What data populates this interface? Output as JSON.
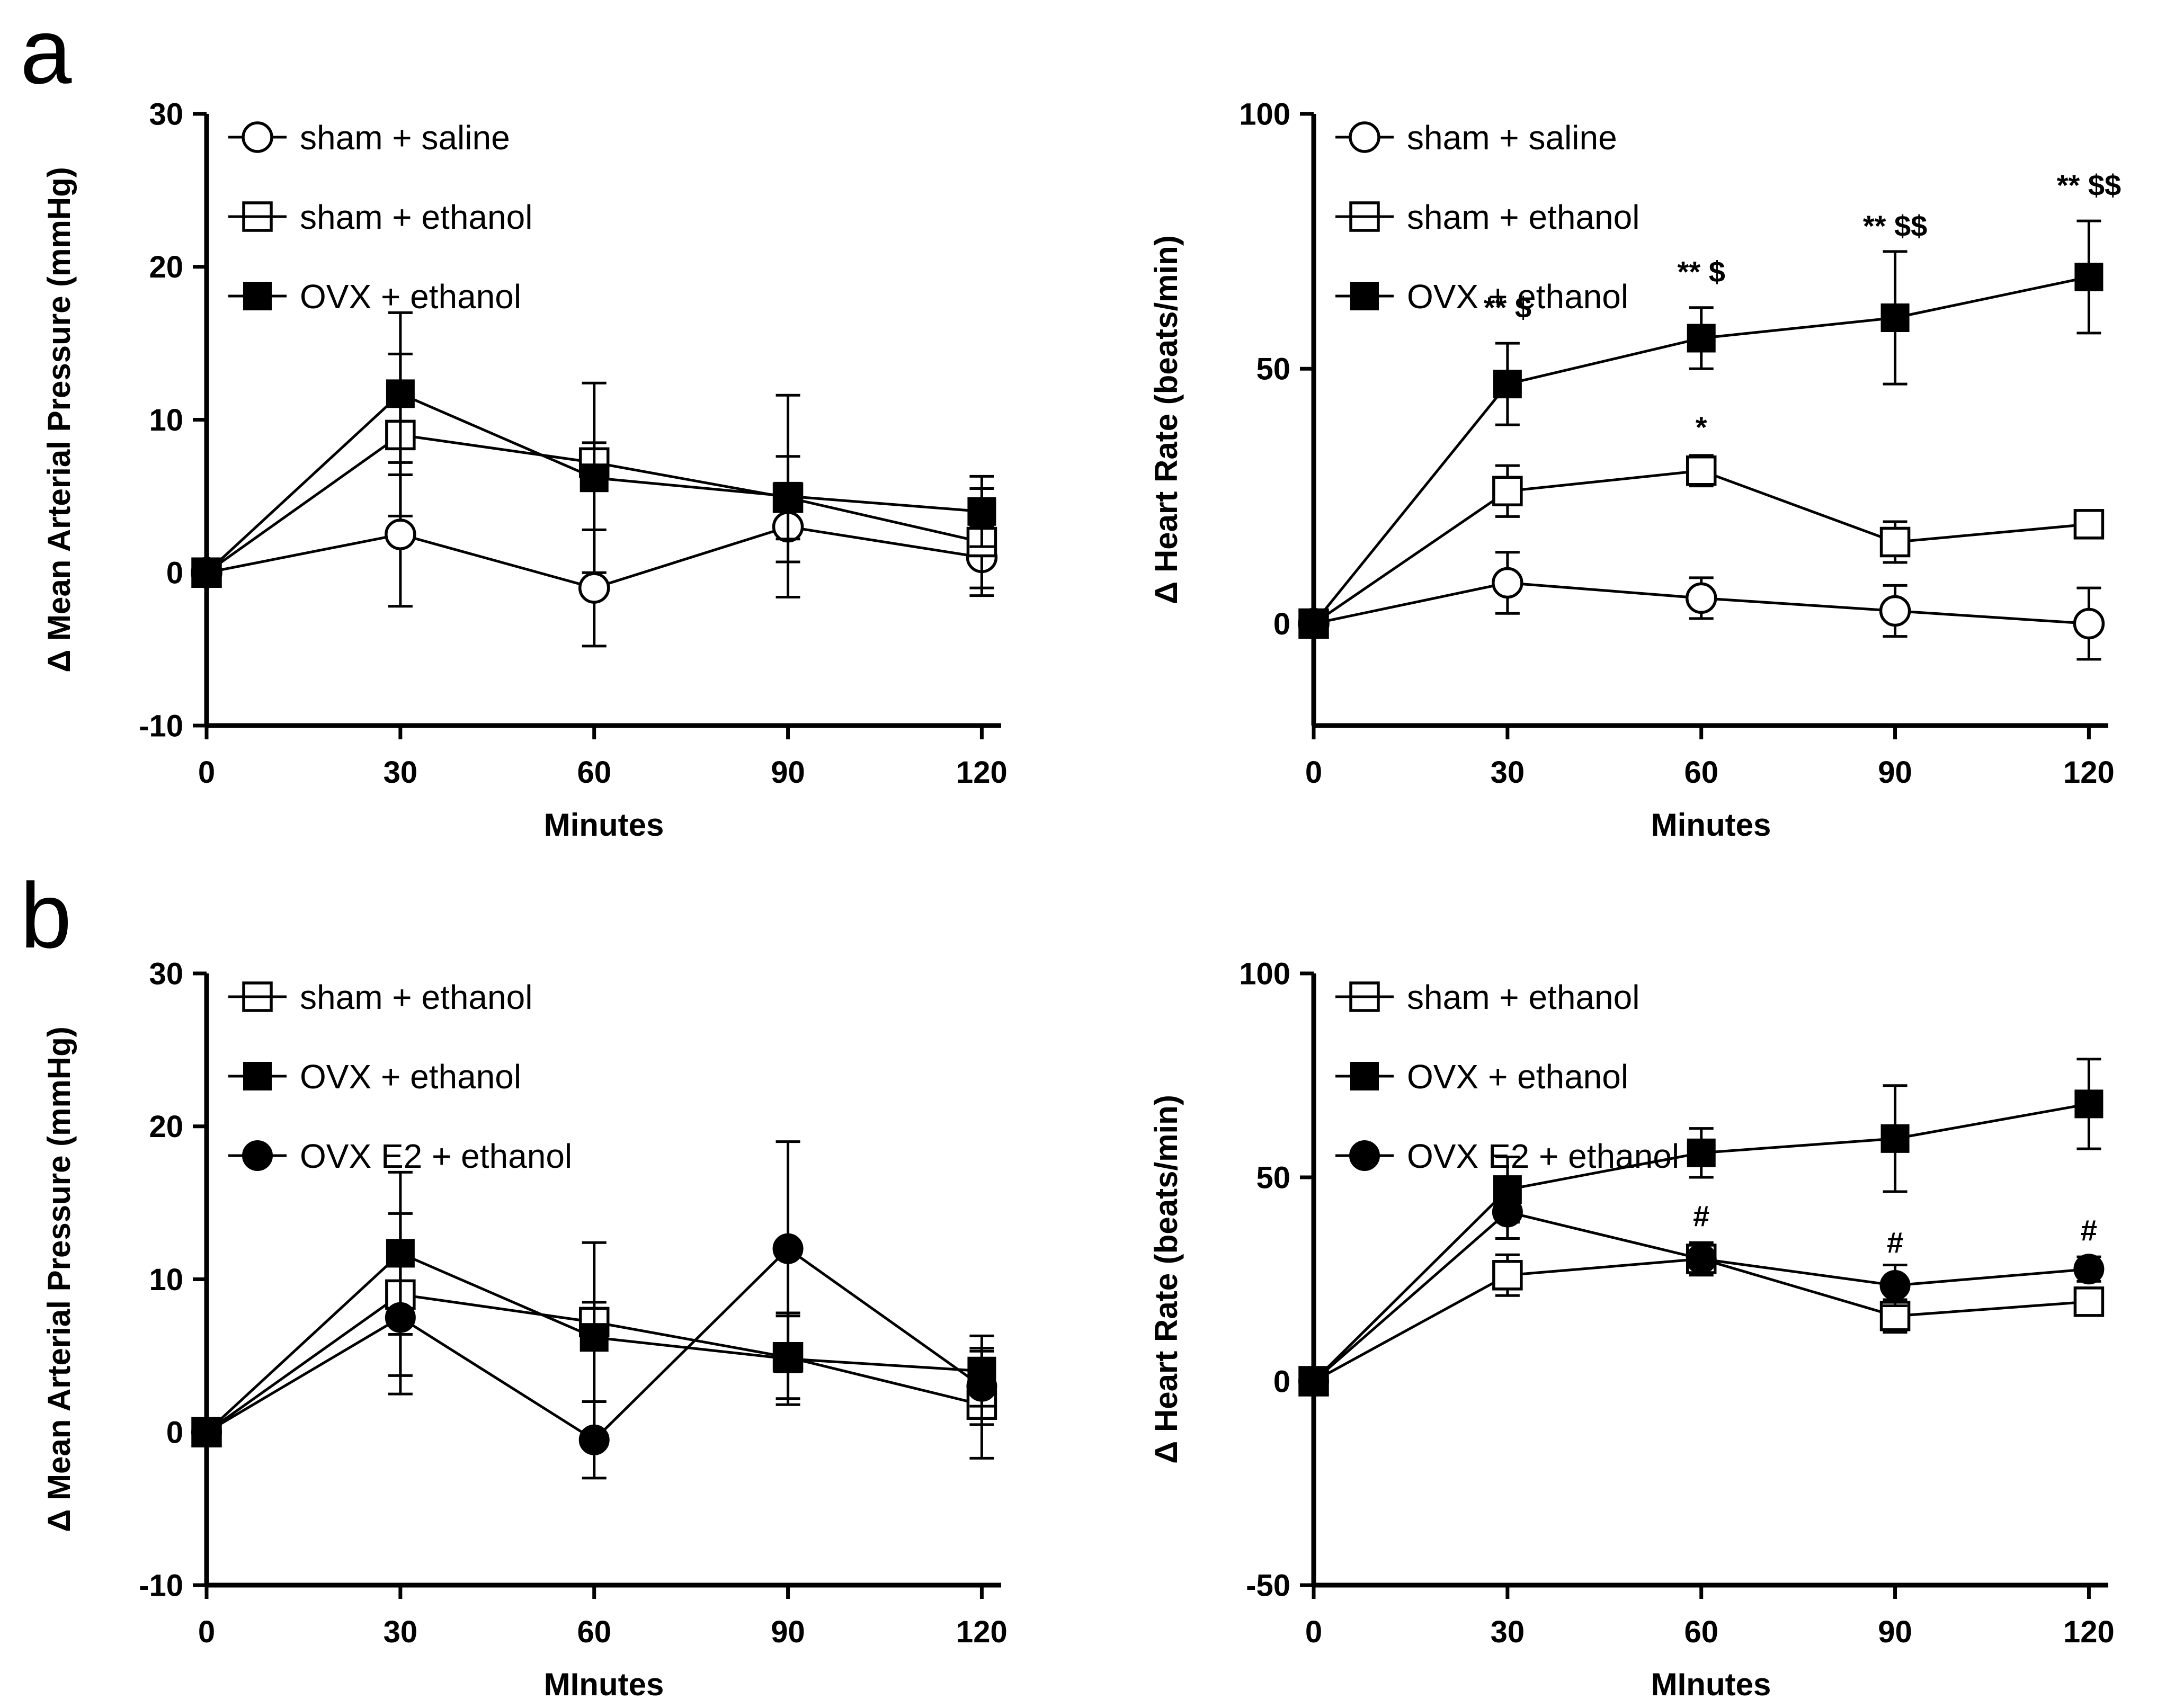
{
  "figure": {
    "description": "Two-panel figure (a, b): time-course line charts of change in mean arterial pressure and heart rate after saline/ethanol in sham, OVX and OVX E2 rats",
    "background": "#ffffff"
  },
  "colors": {
    "ink": "#000000",
    "background": "#ffffff"
  },
  "panels": [
    {
      "label": "a"
    },
    {
      "label": "b"
    }
  ],
  "chart_data": [
    {
      "type": "line",
      "panel": "a",
      "title": "",
      "xlabel": "Minutes",
      "ylabel": "Δ Mean Arterial Pressure (mmHg)",
      "x": [
        0,
        30,
        60,
        90,
        120
      ],
      "xticks": [
        0,
        30,
        60,
        90,
        120
      ],
      "xlim": [
        0,
        123
      ],
      "ylim": [
        -10,
        30
      ],
      "yticks": [
        -10,
        0,
        10,
        20,
        30
      ],
      "grid": false,
      "legend_position": "top-left-inside",
      "series": [
        {
          "name": "sham + saline",
          "marker": "circle-open",
          "values": [
            0,
            2.5,
            -1,
            3,
            1
          ],
          "err": [
            0,
            4.7,
            3.8,
            2.3,
            2.0
          ]
        },
        {
          "name": "sham + ethanol",
          "marker": "square-open",
          "values": [
            0,
            9,
            7.2,
            4.9,
            2
          ],
          "err": [
            0,
            5.3,
            1.3,
            2.7,
            3.5
          ]
        },
        {
          "name": "OVX + ethanol",
          "marker": "square-filled",
          "values": [
            0,
            11.7,
            6.2,
            5,
            4
          ],
          "err": [
            0,
            5.3,
            6.2,
            6.6,
            2.3
          ]
        }
      ],
      "annotations": []
    },
    {
      "type": "line",
      "panel": "a",
      "title": "",
      "xlabel": "Minutes",
      "ylabel": "Δ Heart Rate (beats/min)",
      "x": [
        0,
        30,
        60,
        90,
        120
      ],
      "xticks": [
        0,
        30,
        60,
        90,
        120
      ],
      "xlim": [
        0,
        123
      ],
      "ylim": [
        -20,
        100
      ],
      "yticks": [
        0,
        50,
        100
      ],
      "grid": false,
      "legend_position": "top-left-inside",
      "series": [
        {
          "name": "sham + saline",
          "marker": "circle-open",
          "values": [
            0,
            8,
            5,
            2.5,
            0
          ],
          "err": [
            0,
            6,
            4,
            5,
            7
          ]
        },
        {
          "name": "sham + ethanol",
          "marker": "square-open",
          "values": [
            0,
            26,
            30,
            16,
            19.5
          ],
          "err": [
            0,
            5,
            3,
            4,
            2.5
          ]
        },
        {
          "name": "OVX + ethanol",
          "marker": "square-filled",
          "values": [
            0,
            47,
            56,
            60,
            68
          ],
          "err": [
            0,
            8,
            6,
            13,
            11
          ]
        }
      ],
      "annotations": [
        {
          "x": 30,
          "y": 60,
          "text": "** $"
        },
        {
          "x": 60,
          "y": 67,
          "text": "** $"
        },
        {
          "x": 60,
          "y": 36.5,
          "text": "*"
        },
        {
          "x": 90,
          "y": 76,
          "text": "** $$"
        },
        {
          "x": 120,
          "y": 84,
          "text": "** $$"
        }
      ]
    },
    {
      "type": "line",
      "panel": "b",
      "title": "",
      "xlabel": "MInutes",
      "ylabel": "Δ Mean Arterial Pressure (mmHg)",
      "x": [
        0,
        30,
        60,
        90,
        120
      ],
      "xticks": [
        0,
        30,
        60,
        90,
        120
      ],
      "xlim": [
        0,
        123
      ],
      "ylim": [
        -10,
        30
      ],
      "yticks": [
        -10,
        0,
        10,
        20,
        30
      ],
      "grid": false,
      "legend_position": "top-left-inside",
      "series": [
        {
          "name": "sham + ethanol",
          "marker": "square-open",
          "values": [
            0,
            9,
            7.2,
            4.9,
            1.8
          ],
          "err": [
            0,
            5.3,
            1.3,
            2.7,
            3.5
          ]
        },
        {
          "name": "OVX + ethanol",
          "marker": "square-filled",
          "values": [
            0,
            11.7,
            6.2,
            4.8,
            4
          ],
          "err": [
            0,
            5.3,
            6.2,
            3.0,
            2.3
          ]
        },
        {
          "name": "OVX E2 + ethanol",
          "marker": "circle-filled",
          "values": [
            0,
            7.5,
            -0.5,
            12,
            3
          ],
          "err": [
            0,
            5.0,
            2.5,
            7.0,
            2.5
          ]
        }
      ],
      "annotations": []
    },
    {
      "type": "line",
      "panel": "b",
      "title": "",
      "xlabel": "MInutes",
      "ylabel": "Δ Heart Rate (beats/min)",
      "x": [
        0,
        30,
        60,
        90,
        120
      ],
      "xticks": [
        0,
        30,
        60,
        90,
        120
      ],
      "xlim": [
        0,
        123
      ],
      "ylim": [
        -50,
        100
      ],
      "yticks": [
        -50,
        0,
        50,
        100
      ],
      "grid": false,
      "legend_position": "top-left-inside",
      "series": [
        {
          "name": "sham + ethanol",
          "marker": "square-open",
          "values": [
            0,
            26,
            30,
            16,
            19.5
          ],
          "err": [
            0,
            5,
            3,
            4,
            2.5
          ]
        },
        {
          "name": "OVX + ethanol",
          "marker": "square-filled",
          "values": [
            0,
            47,
            56,
            59.5,
            68
          ],
          "err": [
            0,
            8,
            6,
            13,
            11
          ]
        },
        {
          "name": "OVX E2 + ethanol",
          "marker": "circle-filled",
          "values": [
            0,
            41.5,
            30,
            23.5,
            27.5
          ],
          "err": [
            0,
            6.5,
            4,
            5,
            3
          ]
        }
      ],
      "annotations": [
        {
          "x": 60,
          "y": 38,
          "text": "#"
        },
        {
          "x": 90,
          "y": 31.5,
          "text": "#"
        },
        {
          "x": 120,
          "y": 34.5,
          "text": "#"
        }
      ]
    }
  ]
}
